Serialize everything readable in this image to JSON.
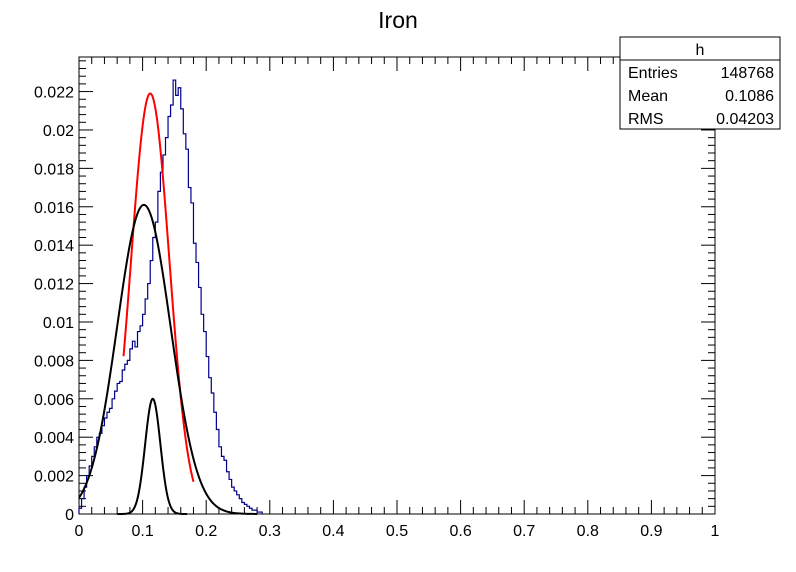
{
  "chart_data": {
    "type": "histogram",
    "title": "Iron",
    "xlabel": "",
    "ylabel": "",
    "xlim": [
      0,
      1
    ],
    "ylim": [
      0,
      0.0238
    ],
    "x_ticks": [
      "0",
      "0.1",
      "0.2",
      "0.3",
      "0.4",
      "0.5",
      "0.6",
      "0.7",
      "0.8",
      "0.9",
      "1"
    ],
    "y_ticks": [
      "0",
      "0.002",
      "0.004",
      "0.006",
      "0.008",
      "0.01",
      "0.012",
      "0.014",
      "0.016",
      "0.018",
      "0.02",
      "0.022"
    ],
    "grid": false,
    "colors": {
      "histogram": "#00008b",
      "total_fit": "#ff0000",
      "components": "#000000"
    },
    "stats_box": {
      "name": "h",
      "rows": [
        {
          "label": "Entries",
          "value": "148768"
        },
        {
          "label": "Mean",
          "value": "0.1086"
        },
        {
          "label": "RMS",
          "value": "0.04203"
        }
      ]
    },
    "histogram": {
      "bin_width": 0.004,
      "bin_start": 0.0,
      "counts": [
        0.0003,
        0.0008,
        0.0014,
        0.002,
        0.0025,
        0.003,
        0.0035,
        0.004,
        0.0042,
        0.0046,
        0.005,
        0.0053,
        0.0055,
        0.006,
        0.0064,
        0.0068,
        0.0069,
        0.0075,
        0.0078,
        0.008,
        0.0086,
        0.009,
        0.0087,
        0.0095,
        0.0098,
        0.0104,
        0.0112,
        0.012,
        0.0132,
        0.0144,
        0.0152,
        0.0168,
        0.0178,
        0.0187,
        0.0196,
        0.0207,
        0.0213,
        0.0226,
        0.0218,
        0.0222,
        0.0211,
        0.0198,
        0.019,
        0.017,
        0.0162,
        0.0141,
        0.0131,
        0.0118,
        0.0104,
        0.0095,
        0.0082,
        0.0071,
        0.0063,
        0.0053,
        0.0044,
        0.0035,
        0.003,
        0.0028,
        0.0022,
        0.0018,
        0.0014,
        0.0012,
        0.001,
        0.0008,
        0.0006,
        0.0005,
        0.0004,
        0.0003,
        0.0002,
        0.0002,
        0.0001,
        0.0001
      ]
    },
    "series": [
      {
        "type": "gaussian",
        "role": "total_fit",
        "amplitude": 0.0219,
        "mean": 0.112,
        "sigma": 0.03,
        "x_range": [
          0.07,
          0.18
        ]
      },
      {
        "type": "gaussian",
        "role": "component",
        "amplitude": 0.0161,
        "mean": 0.102,
        "sigma": 0.042,
        "x_range": [
          0.0,
          0.28
        ]
      },
      {
        "type": "gaussian",
        "role": "component",
        "amplitude": 0.006,
        "mean": 0.116,
        "sigma": 0.012,
        "x_range": [
          0.06,
          0.17
        ]
      }
    ]
  }
}
